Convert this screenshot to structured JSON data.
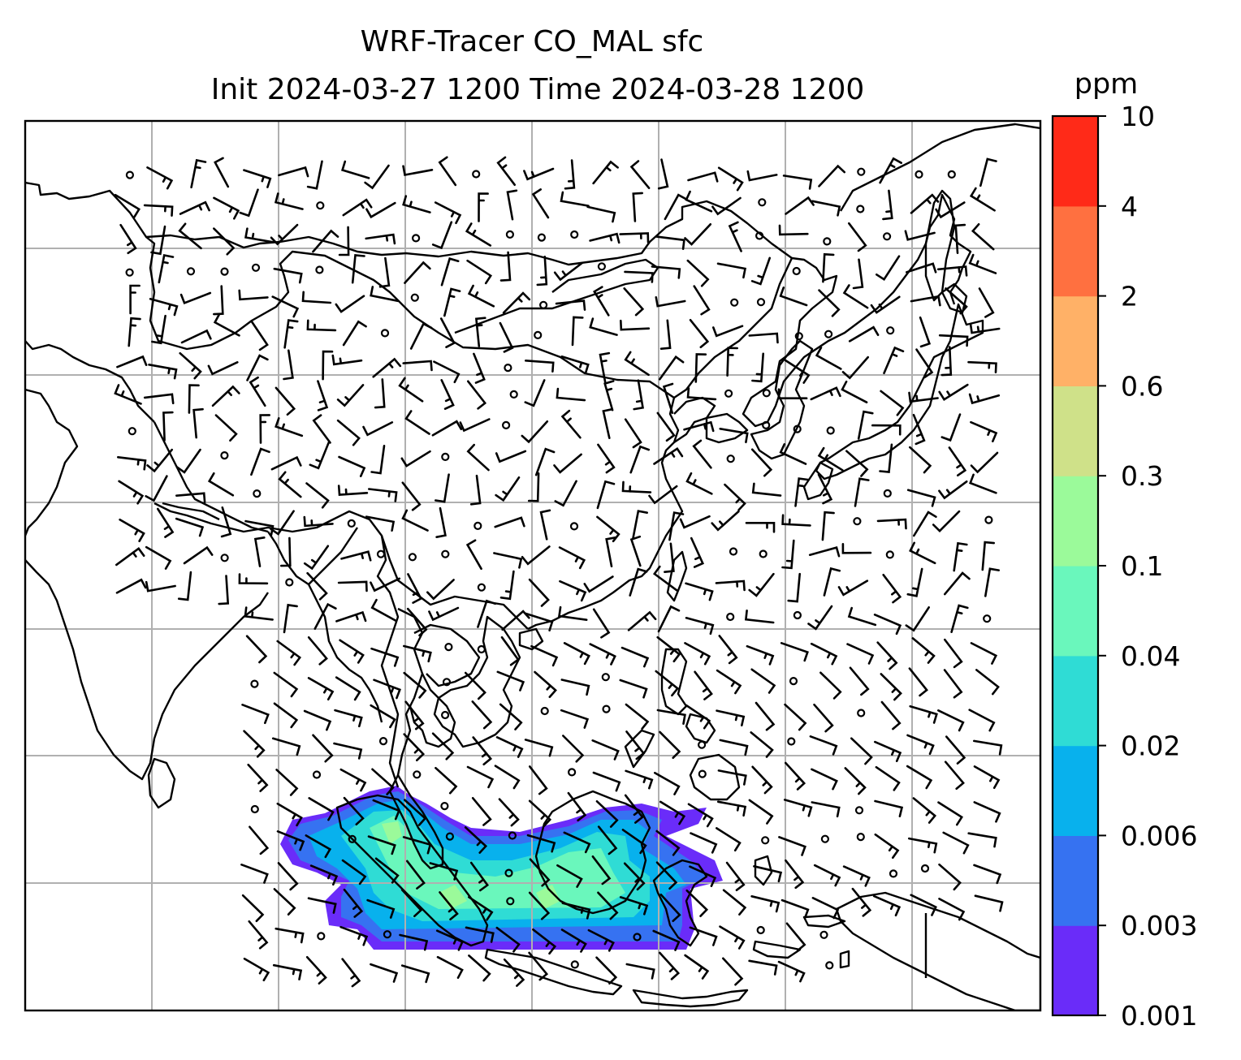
{
  "figure": {
    "title_line1": "WRF-Tracer CO_MAL sfc",
    "title_line2": "Init 2024-03-27 1200 Time 2024-03-28 1200"
  },
  "colorbar": {
    "units": "ppm",
    "levels": [
      "0.001",
      "0.003",
      "0.006",
      "0.02",
      "0.04",
      "0.1",
      "0.3",
      "0.6",
      "2",
      "4",
      "10"
    ],
    "colors": [
      "#6a2cf9",
      "#3672f1",
      "#08b1ed",
      "#2fdcd5",
      "#6af7bc",
      "#9bfa9a",
      "#cfe189",
      "#ffb167",
      "#ff7040",
      "#ff2a18"
    ]
  },
  "map": {
    "region": "South and Southeast Asia",
    "coastline_color": "#000000",
    "gridline_color": "#b0b0b0",
    "field": "CO_MAL surface tracer concentration",
    "wind_barbs": true,
    "plume_colors": [
      "#6a2cf9",
      "#3672f1",
      "#08b1ed",
      "#2fdcd5",
      "#6af7bc",
      "#9bfa9a"
    ]
  }
}
